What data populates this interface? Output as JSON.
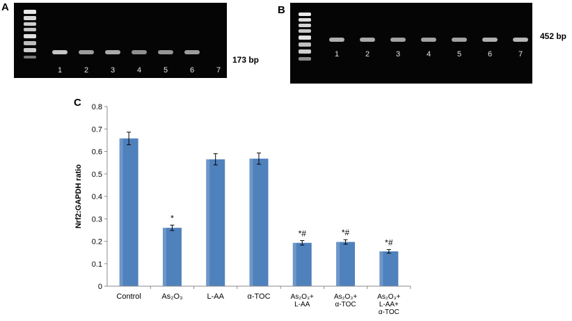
{
  "panels": {
    "a": {
      "letter": "A",
      "size_label": "173 bp",
      "lanes": [
        "1",
        "2",
        "3",
        "4",
        "5",
        "6",
        "7"
      ],
      "band_intensity": [
        0.85,
        0.55,
        0.65,
        0.45,
        0.5,
        0.55,
        0
      ]
    },
    "b": {
      "letter": "B",
      "size_label": "452 bp",
      "lanes": [
        "1",
        "2",
        "3",
        "4",
        "5",
        "6",
        "7"
      ],
      "band_intensity": [
        0.7,
        0.65,
        0.6,
        0.6,
        0.6,
        0.7,
        0.75
      ]
    },
    "c": {
      "letter": "C"
    }
  },
  "chart_data": {
    "type": "bar",
    "ylabel": "Nrf2:GAPDH  ratio",
    "ylim": [
      0,
      0.8
    ],
    "yticks": [
      0,
      0.1,
      0.2,
      0.3,
      0.4,
      0.5,
      0.6,
      0.7,
      0.8
    ],
    "ytick_labels": [
      "0",
      "0.1",
      "0.2",
      "0.3",
      "0.4",
      "0.5",
      "0.6",
      "0.7",
      "0.8"
    ],
    "categories": [
      [
        "Control"
      ],
      [
        "As₂O₃"
      ],
      [
        "L-AA"
      ],
      [
        "α-TOC"
      ],
      [
        "As₂O₃+",
        "L-AA"
      ],
      [
        "As₂O₃+",
        "α-TOC"
      ],
      [
        "As₂O₃+",
        "L-AA+",
        "α-TOC"
      ]
    ],
    "values": [
      0.658,
      0.26,
      0.565,
      0.568,
      0.193,
      0.197,
      0.155
    ],
    "errors": [
      0.028,
      0.012,
      0.025,
      0.025,
      0.01,
      0.01,
      0.008
    ],
    "annotations": [
      "",
      "*",
      "",
      "",
      "*#",
      "*#",
      "*#"
    ],
    "bar_color": "#4f81bd",
    "grid": false,
    "legend": "none"
  }
}
